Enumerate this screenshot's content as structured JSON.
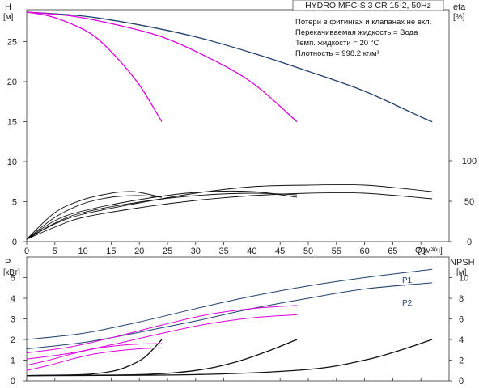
{
  "chart_data": [
    {
      "type": "line",
      "title": "HYDRO MPC-S 3 CR 15-2, 50Hz",
      "notes": [
        "Потери в фитингах и клапанах не вкл.",
        "Перекачиваемая жидкость = Вода",
        "Темп. жидкости = 20 °C",
        "Плотность = 998.2 кг/м³"
      ],
      "ylabel": "H",
      "yunit": "[м]",
      "y2label": "eta",
      "y2unit": "[%]",
      "xlabel": "Q",
      "xunit": "[м³/ч]",
      "xlim": [
        0,
        75
      ],
      "ylim": [
        0,
        29
      ],
      "y2lim": [
        0,
        100
      ],
      "x_ticks": [
        "0",
        "5",
        "10",
        "15",
        "20",
        "25",
        "30",
        "35",
        "40",
        "45",
        "50",
        "55",
        "60",
        "65",
        "70"
      ],
      "y_ticks": [
        "0",
        "5",
        "10",
        "15",
        "20",
        "25"
      ],
      "y2_ticks": [
        "0",
        "50",
        "100"
      ],
      "grid": false,
      "head_curves": [
        {
          "color": "#1f3f6e",
          "points": [
            [
              0,
              28.7
            ],
            [
              10,
              28.2
            ],
            [
              20,
              27.1
            ],
            [
              30,
              25.6
            ],
            [
              40,
              23.6
            ],
            [
              50,
              21.3
            ],
            [
              60,
              18.8
            ],
            [
              70,
              15.6
            ],
            [
              72,
              15.0
            ]
          ]
        },
        {
          "color": "#e000e0",
          "points": [
            [
              0,
              28.7
            ],
            [
              8,
              28.2
            ],
            [
              16,
              27.1
            ],
            [
              24,
              25.6
            ],
            [
              32,
              23.1
            ],
            [
              40,
              19.9
            ],
            [
              48,
              15.0
            ]
          ]
        },
        {
          "color": "#e000e0",
          "points": [
            [
              0,
              28.7
            ],
            [
              4,
              28.2
            ],
            [
              8,
              27.2
            ],
            [
              12,
              25.7
            ],
            [
              16,
              23.0
            ],
            [
              20,
              19.6
            ],
            [
              24,
              15.0
            ]
          ]
        }
      ],
      "eta_curves": [
        {
          "color": "#111111",
          "points": [
            [
              0,
              3
            ],
            [
              5,
              36
            ],
            [
              10,
              52
            ],
            [
              15,
              60
            ],
            [
              18,
              62
            ],
            [
              20,
              61
            ],
            [
              24,
              55
            ]
          ]
        },
        {
          "color": "#111111",
          "points": [
            [
              0,
              3
            ],
            [
              5,
              30
            ],
            [
              10,
              47
            ],
            [
              15,
              55
            ],
            [
              20,
              57
            ],
            [
              24,
              55
            ]
          ]
        },
        {
          "color": "#111111",
          "points": [
            [
              0,
              3
            ],
            [
              5,
              26
            ],
            [
              10,
              38
            ],
            [
              20,
              52
            ],
            [
              30,
              61
            ],
            [
              40,
              62
            ],
            [
              48,
              55
            ]
          ]
        },
        {
          "color": "#111111",
          "points": [
            [
              0,
              3
            ],
            [
              5,
              23
            ],
            [
              10,
              36
            ],
            [
              20,
              49
            ],
            [
              30,
              57
            ],
            [
              40,
              60
            ],
            [
              48,
              58
            ]
          ]
        },
        {
          "color": "#111111",
          "points": [
            [
              0,
              3
            ],
            [
              5,
              22
            ],
            [
              10,
              34
            ],
            [
              20,
              48
            ],
            [
              30,
              60
            ],
            [
              40,
              68
            ],
            [
              50,
              70
            ],
            [
              60,
              70
            ],
            [
              72,
              62
            ]
          ]
        },
        {
          "color": "#111111",
          "points": [
            [
              0,
              3
            ],
            [
              5,
              18
            ],
            [
              10,
              30
            ],
            [
              20,
              42
            ],
            [
              30,
              51
            ],
            [
              40,
              57
            ],
            [
              50,
              60
            ],
            [
              60,
              60
            ],
            [
              72,
              53
            ]
          ]
        }
      ]
    },
    {
      "type": "line",
      "ylabel": "P",
      "yunit": "[кВт]",
      "y2label": "NPSH",
      "y2unit": "[м]",
      "xlim": [
        0,
        75
      ],
      "ylim": [
        0,
        6
      ],
      "y2lim": [
        0,
        12
      ],
      "y_ticks": [
        "0",
        "1",
        "2",
        "3",
        "4",
        "5"
      ],
      "y2_ticks": [
        "0",
        "2",
        "4",
        "6",
        "8",
        "10"
      ],
      "grid": false,
      "power_curves": [
        {
          "name": "P1",
          "color": "#1f3f6e",
          "points": [
            [
              0,
              2.0
            ],
            [
              10,
              2.3
            ],
            [
              20,
              2.85
            ],
            [
              30,
              3.5
            ],
            [
              40,
              4.1
            ],
            [
              50,
              4.6
            ],
            [
              60,
              5.0
            ],
            [
              72,
              5.4
            ]
          ]
        },
        {
          "name": "P2",
          "color": "#1f3f6e",
          "points": [
            [
              0,
              1.55
            ],
            [
              10,
              1.85
            ],
            [
              20,
              2.35
            ],
            [
              30,
              2.9
            ],
            [
              40,
              3.5
            ],
            [
              50,
              4.0
            ],
            [
              60,
              4.45
            ],
            [
              72,
              4.75
            ]
          ]
        },
        {
          "color": "#e000e0",
          "points": [
            [
              0,
              1.35
            ],
            [
              8,
              1.65
            ],
            [
              16,
              2.15
            ],
            [
              24,
              2.7
            ],
            [
              32,
              3.2
            ],
            [
              40,
              3.5
            ],
            [
              48,
              3.65
            ]
          ]
        },
        {
          "color": "#e000e0",
          "points": [
            [
              0,
              1.05
            ],
            [
              8,
              1.35
            ],
            [
              16,
              1.8
            ],
            [
              24,
              2.3
            ],
            [
              32,
              2.75
            ],
            [
              40,
              3.05
            ],
            [
              48,
              3.2
            ]
          ]
        },
        {
          "color": "#e000e0",
          "points": [
            [
              0,
              0.75
            ],
            [
              4,
              1.0
            ],
            [
              8,
              1.3
            ],
            [
              12,
              1.55
            ],
            [
              16,
              1.7
            ],
            [
              20,
              1.78
            ],
            [
              24,
              1.8
            ]
          ]
        },
        {
          "color": "#e000e0",
          "points": [
            [
              0,
              0.5
            ],
            [
              4,
              0.75
            ],
            [
              8,
              1.05
            ],
            [
              12,
              1.3
            ],
            [
              16,
              1.45
            ],
            [
              20,
              1.55
            ],
            [
              24,
              1.6
            ]
          ]
        }
      ],
      "npsh_curves": [
        {
          "color": "#111111",
          "points": [
            [
              0,
              0.5
            ],
            [
              10,
              0.6
            ],
            [
              15,
              0.9
            ],
            [
              18,
              1.4
            ],
            [
              21,
              2.3
            ],
            [
              24,
              4.0
            ]
          ]
        },
        {
          "color": "#111111",
          "points": [
            [
              0,
              0.5
            ],
            [
              20,
              0.6
            ],
            [
              30,
              1.0
            ],
            [
              37,
              1.8
            ],
            [
              43,
              2.9
            ],
            [
              48,
              4.0
            ]
          ]
        },
        {
          "color": "#111111",
          "points": [
            [
              0,
              0.5
            ],
            [
              30,
              0.6
            ],
            [
              50,
              1.1
            ],
            [
              60,
              2.0
            ],
            [
              66,
              2.9
            ],
            [
              72,
              4.0
            ]
          ]
        }
      ]
    }
  ]
}
